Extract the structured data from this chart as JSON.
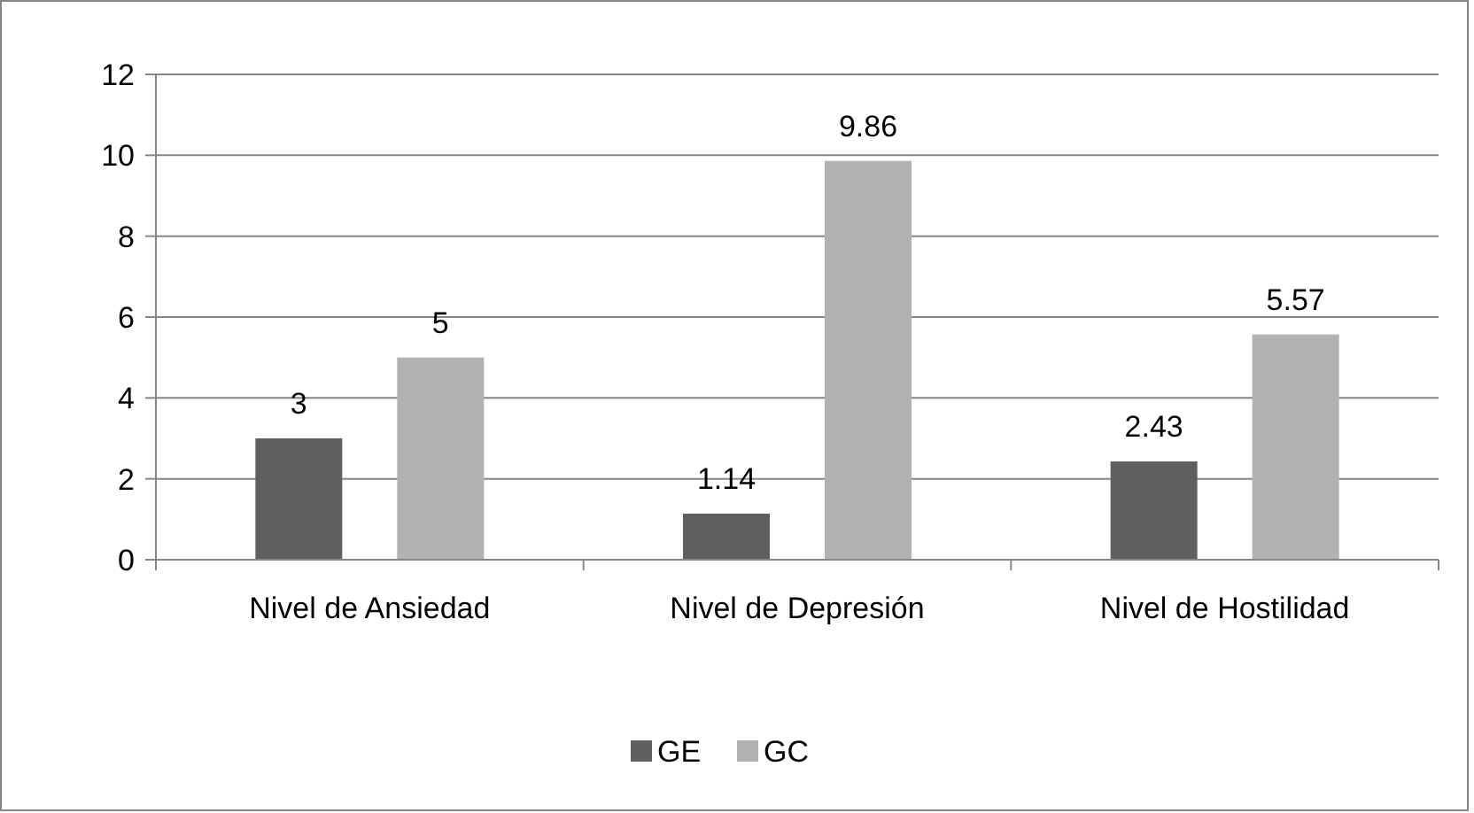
{
  "chart_data": {
    "type": "bar",
    "categories": [
      "Nivel de Ansiedad",
      "Nivel de Depresión",
      "Nivel de Hostilidad"
    ],
    "series": [
      {
        "name": "GE",
        "color": "#5f5f5f",
        "values": [
          3,
          1.14,
          2.43
        ]
      },
      {
        "name": "GC",
        "color": "#b2b2b2",
        "values": [
          5,
          9.86,
          5.57
        ]
      }
    ],
    "ylim": [
      0,
      12
    ],
    "yticks": [
      0,
      2,
      4,
      6,
      8,
      10,
      12
    ],
    "grid": "y",
    "legend": "bottom",
    "data_labels": true
  }
}
